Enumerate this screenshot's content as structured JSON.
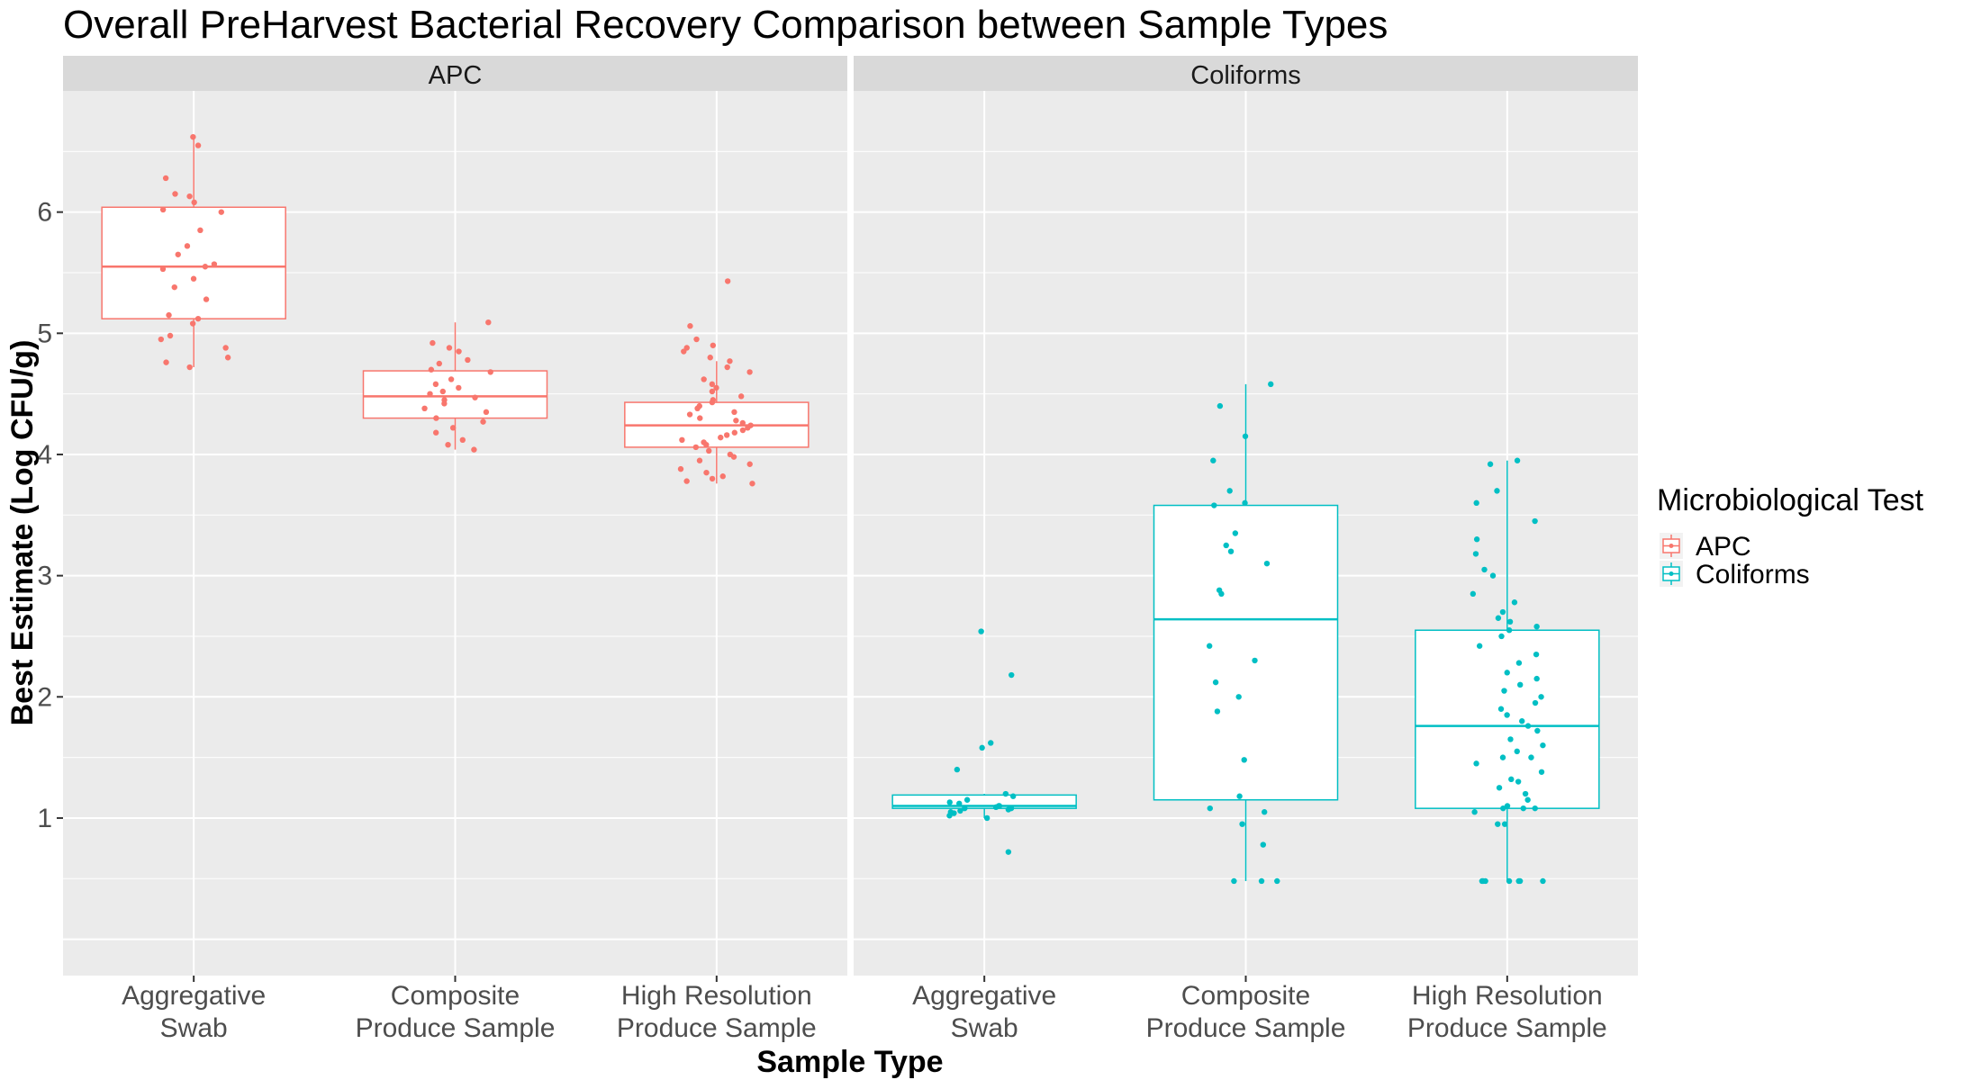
{
  "chart_data": {
    "type": "boxplot",
    "title": "Overall PreHarvest Bacterial Recovery Comparison between Sample Types",
    "xlabel": "Sample Type",
    "ylabel": "Best Estimate (Log CFU/g)",
    "ylim": [
      -0.3,
      7.0
    ],
    "yticks": [
      "1",
      "2",
      "3",
      "4",
      "5",
      "6"
    ],
    "ytick_values": [
      1,
      2,
      3,
      4,
      5,
      6
    ],
    "grid": true,
    "categories": [
      [
        "Aggregative",
        "Swab"
      ],
      [
        "Composite",
        "Produce Sample"
      ],
      [
        "High Resolution",
        "Produce Sample"
      ]
    ],
    "legend": {
      "title": "Microbiological Test",
      "position": "right",
      "entries": [
        "APC",
        "Coliforms"
      ]
    },
    "colors": {
      "APC": "#F8766D",
      "Coliforms": "#00BFC4"
    },
    "panels": [
      {
        "name": "APC",
        "boxes": [
          {
            "q1": 5.12,
            "median": 5.55,
            "q3": 6.04,
            "whisker_low": 4.72,
            "whisker_high": 6.62,
            "points": [
              6.62,
              6.55,
              6.28,
              6.15,
              6.13,
              6.08,
              6.02,
              6.0,
              5.85,
              5.72,
              5.65,
              5.57,
              5.55,
              5.53,
              5.45,
              5.38,
              5.28,
              5.15,
              5.12,
              5.08,
              4.98,
              4.95,
              4.88,
              4.8,
              4.76,
              4.72
            ]
          },
          {
            "q1": 4.3,
            "median": 4.48,
            "q3": 4.69,
            "whisker_low": 4.04,
            "whisker_high": 5.09,
            "points": [
              5.09,
              4.92,
              4.88,
              4.85,
              4.78,
              4.75,
              4.7,
              4.68,
              4.62,
              4.58,
              4.55,
              4.52,
              4.5,
              4.47,
              4.45,
              4.42,
              4.38,
              4.35,
              4.3,
              4.27,
              4.22,
              4.18,
              4.12,
              4.08,
              4.04
            ]
          },
          {
            "q1": 4.06,
            "median": 4.24,
            "q3": 4.43,
            "whisker_low": 3.76,
            "whisker_high": 4.77,
            "points": [
              5.43,
              5.06,
              4.95,
              4.9,
              4.88,
              4.85,
              4.8,
              4.77,
              4.72,
              4.68,
              4.62,
              4.58,
              4.55,
              4.52,
              4.48,
              4.45,
              4.43,
              4.4,
              4.38,
              4.35,
              4.33,
              4.3,
              4.28,
              4.26,
              4.24,
              4.22,
              4.2,
              4.18,
              4.16,
              4.14,
              4.12,
              4.1,
              4.08,
              4.06,
              4.03,
              4.0,
              3.98,
              3.95,
              3.92,
              3.88,
              3.85,
              3.82,
              3.8,
              3.78,
              3.76
            ]
          }
        ]
      },
      {
        "name": "Coliforms",
        "boxes": [
          {
            "q1": 1.08,
            "median": 1.1,
            "q3": 1.19,
            "whisker_low": 1.0,
            "whisker_high": 1.2,
            "points": [
              2.54,
              2.18,
              1.62,
              1.58,
              1.4,
              1.2,
              1.18,
              1.15,
              1.13,
              1.12,
              1.1,
              1.1,
              1.09,
              1.08,
              1.08,
              1.07,
              1.06,
              1.05,
              1.04,
              1.02,
              1.0,
              0.72
            ]
          },
          {
            "q1": 1.15,
            "median": 2.64,
            "q3": 3.58,
            "whisker_low": 0.48,
            "whisker_high": 4.58,
            "points": [
              4.58,
              4.4,
              4.15,
              3.95,
              3.7,
              3.6,
              3.58,
              3.35,
              3.25,
              3.2,
              3.1,
              2.88,
              2.85,
              2.42,
              2.3,
              2.12,
              2.0,
              1.88,
              1.48,
              1.18,
              1.08,
              1.05,
              0.95,
              0.78,
              0.48,
              0.48,
              0.48
            ]
          },
          {
            "q1": 1.08,
            "median": 1.76,
            "q3": 2.55,
            "whisker_low": 0.48,
            "whisker_high": 3.95,
            "points": [
              3.95,
              3.92,
              3.7,
              3.6,
              3.45,
              3.3,
              3.18,
              3.05,
              3.0,
              2.85,
              2.78,
              2.7,
              2.65,
              2.62,
              2.58,
              2.55,
              2.5,
              2.42,
              2.35,
              2.28,
              2.2,
              2.15,
              2.1,
              2.05,
              2.0,
              1.95,
              1.9,
              1.85,
              1.8,
              1.76,
              1.72,
              1.65,
              1.6,
              1.55,
              1.5,
              1.5,
              1.45,
              1.38,
              1.32,
              1.3,
              1.25,
              1.2,
              1.15,
              1.1,
              1.08,
              1.08,
              1.08,
              1.05,
              0.95,
              0.95,
              0.48,
              0.48,
              0.48,
              0.48,
              0.48,
              0.48,
              0.48
            ]
          }
        ]
      }
    ]
  }
}
